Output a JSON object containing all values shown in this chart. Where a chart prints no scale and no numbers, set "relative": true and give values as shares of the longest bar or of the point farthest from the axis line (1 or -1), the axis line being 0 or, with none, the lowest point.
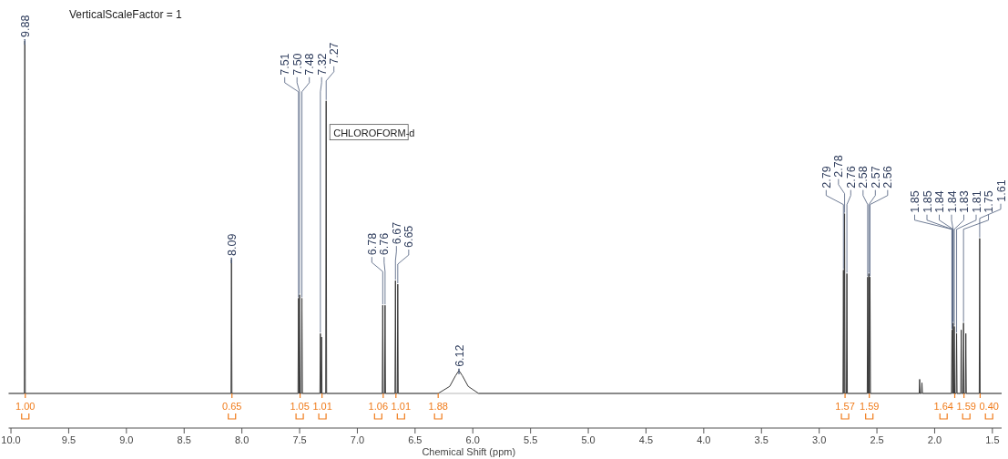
{
  "chart_data": {
    "type": "line",
    "relative": true,
    "xlabel": "Chemical Shift (ppm)",
    "xlim": [
      10.02,
      1.42
    ],
    "xticks": [
      {
        "value": 10,
        "label": "10.0"
      },
      9.5,
      {
        "value": 9,
        "label": "9.0"
      },
      8.5,
      {
        "value": 8,
        "label": "8.0"
      },
      7.5,
      {
        "value": 7,
        "label": "7.0"
      },
      6.5,
      {
        "value": 6,
        "label": "6.0"
      },
      5.5,
      {
        "value": 5,
        "label": "5.0"
      },
      4.5,
      {
        "value": 4,
        "label": "4.0"
      },
      3.5,
      {
        "value": 3,
        "label": "3.0"
      },
      2.5,
      {
        "value": 2,
        "label": "2.0"
      },
      1.5
    ],
    "marker": "none",
    "line_style": "solid",
    "series": [
      {
        "color": "#3a3a3a",
        "x": [
          10.02,
          9.884,
          9.88,
          9.876,
          8.094,
          8.09,
          8.086,
          7.514,
          7.51,
          7.506,
          7.504,
          7.5,
          7.496,
          7.484,
          7.48,
          7.476,
          7.324,
          7.32,
          7.316,
          7.314,
          7.31,
          7.306,
          7.274,
          7.27,
          7.266,
          6.784,
          6.78,
          6.776,
          6.764,
          6.76,
          6.756,
          6.674,
          6.67,
          6.666,
          6.654,
          6.65,
          6.646,
          6.3,
          6.2,
          6.15,
          6.12,
          6.09,
          6.04,
          5.95,
          2.794,
          2.79,
          2.786,
          2.784,
          2.78,
          2.776,
          2.764,
          2.76,
          2.756,
          2.584,
          2.58,
          2.576,
          2.574,
          2.57,
          2.566,
          2.564,
          2.56,
          2.556,
          2.134,
          2.13,
          2.126,
          2.114,
          2.11,
          2.106,
          1.854,
          1.85,
          1.846,
          1.844,
          1.84,
          1.836,
          1.834,
          1.83,
          1.826,
          1.814,
          1.81,
          1.806,
          1.774,
          1.77,
          1.766,
          1.754,
          1.75,
          1.746,
          1.734,
          1.73,
          1.726,
          1.614,
          1.61,
          1.606,
          1.42
        ],
        "values": [
          0,
          0,
          1.0,
          0,
          0,
          0.38,
          0,
          0,
          0.27,
          0,
          0,
          0.28,
          0,
          0,
          0.27,
          0,
          0,
          0.17,
          0,
          0,
          0.16,
          0,
          0,
          0.83,
          0,
          0,
          0.25,
          0,
          0,
          0.25,
          0,
          0,
          0.32,
          0,
          0,
          0.31,
          0,
          0,
          0.02,
          0.05,
          0.065,
          0.05,
          0.02,
          0,
          0,
          0.35,
          0,
          0,
          0.51,
          0,
          0,
          0.34,
          0,
          0,
          0.33,
          0,
          0,
          0.34,
          0,
          0,
          0.33,
          0,
          0,
          0.04,
          0,
          0,
          0.03,
          0,
          0,
          0.18,
          0,
          0,
          0.2,
          0,
          0,
          0.19,
          0,
          0,
          0.17,
          0,
          0,
          0.18,
          0,
          0,
          0.2,
          0,
          0,
          0.17,
          0,
          0,
          0.44,
          0,
          0
        ]
      }
    ],
    "annotations": [
      "VerticalScaleFactor = 1",
      {
        "text": "9.88",
        "x": 9.88,
        "y": 1.0
      },
      {
        "text": "8.09",
        "x": 8.09,
        "y": 0.38
      },
      {
        "text": "7.51",
        "x": 7.51,
        "y": 0.27
      },
      {
        "text": "7.50",
        "x": 7.5,
        "y": 0.28
      },
      {
        "text": "7.48",
        "x": 7.48,
        "y": 0.27
      },
      {
        "text": "7.32",
        "x": 7.32,
        "y": 0.17
      },
      {
        "text": "7.27",
        "x": 7.27,
        "y": 0.83
      },
      {
        "text": "CHLOROFORM-d",
        "x": 7.27,
        "y": 0.74
      },
      {
        "text": "6.78",
        "x": 6.78,
        "y": 0.25
      },
      {
        "text": "6.76",
        "x": 6.76,
        "y": 0.25
      },
      {
        "text": "6.67",
        "x": 6.67,
        "y": 0.32
      },
      {
        "text": "6.65",
        "x": 6.65,
        "y": 0.31
      },
      {
        "text": "6.12",
        "x": 6.12,
        "y": 0.065
      },
      {
        "text": "2.79",
        "x": 2.79,
        "y": 0.35
      },
      {
        "text": "2.78",
        "x": 2.78,
        "y": 0.51
      },
      {
        "text": "2.76",
        "x": 2.76,
        "y": 0.34
      },
      {
        "text": "2.58",
        "x": 2.58,
        "y": 0.33
      },
      {
        "text": "2.57",
        "x": 2.57,
        "y": 0.34
      },
      {
        "text": "2.56",
        "x": 2.56,
        "y": 0.33
      },
      {
        "text": "1.85",
        "x": 1.85,
        "y": 0.18
      },
      {
        "text": "1.84",
        "x": 1.84,
        "y": 0.2
      },
      {
        "text": "1.85",
        "x": 1.85,
        "y": 0.18
      },
      {
        "text": "1.84",
        "x": 1.84,
        "y": 0.2
      },
      {
        "text": "1.83",
        "x": 1.83,
        "y": 0.19
      },
      {
        "text": "1.81",
        "x": 1.81,
        "y": 0.17
      },
      {
        "text": "1.75",
        "x": 1.75,
        "y": 0.2
      },
      {
        "text": "1.61",
        "x": 1.61,
        "y": 0.44
      },
      {
        "text": "1.00",
        "x": 9.876,
        "y": 0
      },
      {
        "text": "0.65",
        "x": 8.086,
        "y": 0
      },
      {
        "text": "1.05",
        "x": 7.496,
        "y": 0
      },
      {
        "text": "1.01",
        "x": 7.306,
        "y": 0
      },
      {
        "text": "1.06",
        "x": 6.776,
        "y": 0
      },
      {
        "text": "1.01",
        "x": 6.666,
        "y": 0
      },
      {
        "text": "1.88",
        "x": 6.3,
        "y": 0
      },
      {
        "text": "1.57",
        "x": 2.776,
        "y": 0
      },
      {
        "text": "1.59",
        "x": 2.566,
        "y": 0
      },
      {
        "text": "1.64",
        "x": 1.826,
        "y": 0
      },
      {
        "text": "1.59",
        "x": 1.746,
        "y": 0
      },
      {
        "text": "0.40",
        "x": 1.606,
        "y": 0
      }
    ]
  }
}
